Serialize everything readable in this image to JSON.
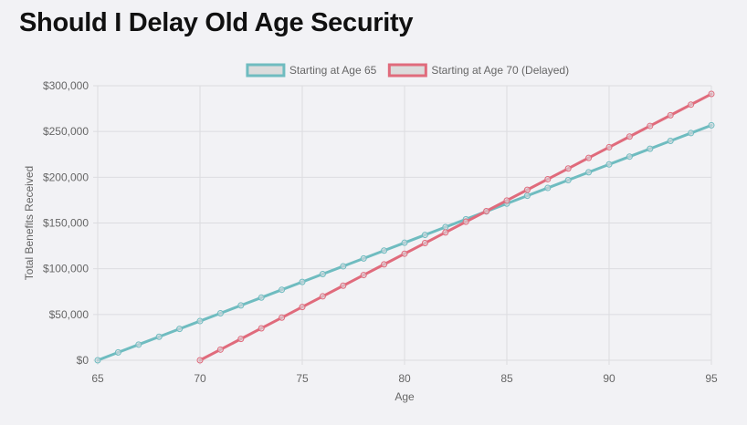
{
  "page": {
    "title": "Should I Delay Old Age Security"
  },
  "chart_data": {
    "type": "line",
    "title": "",
    "xlabel": "Age",
    "ylabel": "Total Benefits Received",
    "xlim": [
      65,
      95
    ],
    "ylim": [
      0,
      300000
    ],
    "x_ticks": [
      65,
      70,
      75,
      80,
      85,
      90,
      95
    ],
    "x_tick_labels": [
      "65",
      "70",
      "75",
      "80",
      "85",
      "90",
      "95"
    ],
    "y_ticks": [
      0,
      50000,
      100000,
      150000,
      200000,
      250000,
      300000
    ],
    "y_tick_labels": [
      "$0",
      "$50,000",
      "$100,000",
      "$150,000",
      "$200,000",
      "$250,000",
      "$300,000"
    ],
    "grid": true,
    "legend_position": "top-center",
    "series": [
      {
        "name": "Starting at Age 65",
        "color": "#6fbcc0",
        "x": [
          65,
          66,
          67,
          68,
          69,
          70,
          71,
          72,
          73,
          74,
          75,
          76,
          77,
          78,
          79,
          80,
          81,
          82,
          83,
          84,
          85,
          86,
          87,
          88,
          89,
          90,
          91,
          92,
          93,
          94,
          95
        ],
        "values": [
          0,
          8560,
          17120,
          25680,
          34240,
          42800,
          51360,
          59920,
          68480,
          77040,
          85600,
          94160,
          102720,
          111280,
          119840,
          128400,
          136960,
          145520,
          154080,
          162640,
          171200,
          179760,
          188320,
          196880,
          205440,
          214000,
          222560,
          231120,
          239680,
          248240,
          256800
        ]
      },
      {
        "name": "Starting at Age 70 (Delayed)",
        "color": "#e06b7c",
        "x": [
          70,
          71,
          72,
          73,
          74,
          75,
          76,
          77,
          78,
          79,
          80,
          81,
          82,
          83,
          84,
          85,
          86,
          87,
          88,
          89,
          90,
          91,
          92,
          93,
          94,
          95
        ],
        "values": [
          0,
          11640,
          23280,
          34920,
          46560,
          58200,
          69840,
          81480,
          93120,
          104760,
          116400,
          128040,
          139680,
          151320,
          162960,
          174600,
          186240,
          197880,
          209520,
          221160,
          232800,
          244440,
          256080,
          267720,
          279360,
          291000
        ]
      }
    ]
  }
}
